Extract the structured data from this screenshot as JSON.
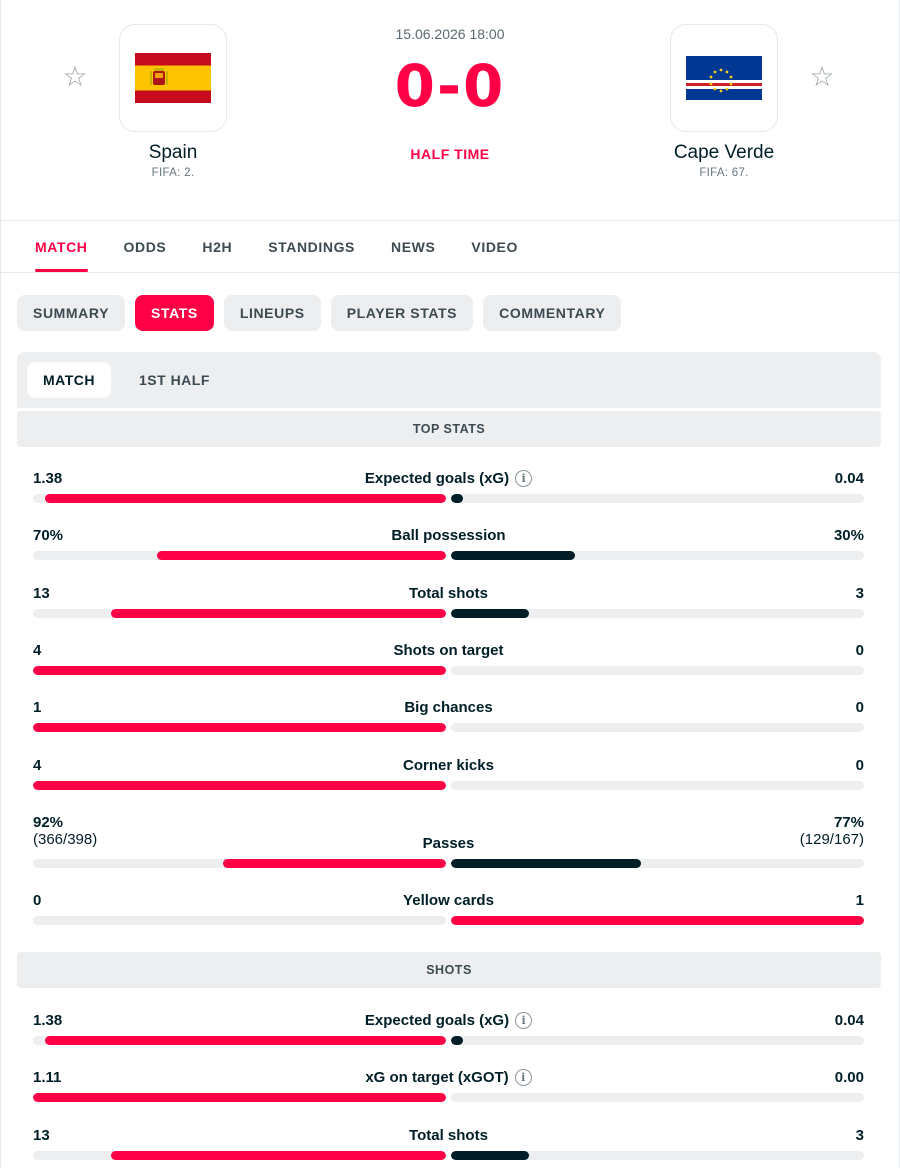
{
  "match": {
    "date": "15.06.2026 18:00",
    "score": "0-0",
    "status": "HALF TIME",
    "home": {
      "name": "Spain",
      "rank": "FIFA: 2."
    },
    "away": {
      "name": "Cape Verde",
      "rank": "FIFA: 67."
    }
  },
  "icons": {
    "favorite": "star-outline-icon",
    "info": "info-circle-icon"
  },
  "colors": {
    "accent": "#ff0046",
    "away_bar": "#001e28",
    "track": "#eceef0"
  },
  "main_tabs": [
    "MATCH",
    "ODDS",
    "H2H",
    "STANDINGS",
    "NEWS",
    "VIDEO"
  ],
  "sub_tabs": [
    "SUMMARY",
    "STATS",
    "LINEUPS",
    "PLAYER STATS",
    "COMMENTARY"
  ],
  "period_tabs": [
    "MATCH",
    "1ST HALF"
  ],
  "sections": [
    {
      "title": "TOP STATS",
      "stats": [
        {
          "home": "1.38",
          "name": "Expected goals (xG)",
          "away": "0.04",
          "info": true,
          "home_frac": 0.97,
          "away_frac": 0.028,
          "home_leads": true
        },
        {
          "home": "70%",
          "name": "Ball possession",
          "away": "30%",
          "info": false,
          "home_frac": 0.7,
          "away_frac": 0.3,
          "home_leads": true
        },
        {
          "home": "13",
          "name": "Total shots",
          "away": "3",
          "info": false,
          "home_frac": 0.81,
          "away_frac": 0.19,
          "home_leads": true
        },
        {
          "home": "4",
          "name": "Shots on target",
          "away": "0",
          "info": false,
          "home_frac": 1.0,
          "away_frac": 0.0,
          "home_leads": true
        },
        {
          "home": "1",
          "name": "Big chances",
          "away": "0",
          "info": false,
          "home_frac": 1.0,
          "away_frac": 0.0,
          "home_leads": true
        },
        {
          "home": "4",
          "name": "Corner kicks",
          "away": "0",
          "info": false,
          "home_frac": 1.0,
          "away_frac": 0.0,
          "home_leads": true
        },
        {
          "home": "92%",
          "home_sub": "(366/398)",
          "name": "Passes",
          "away": "77%",
          "away_sub": "(129/167)",
          "info": false,
          "home_frac": 0.54,
          "away_frac": 0.46,
          "home_leads": true
        },
        {
          "home": "0",
          "name": "Yellow cards",
          "away": "1",
          "info": false,
          "home_frac": 0.0,
          "away_frac": 1.0,
          "home_leads": false
        }
      ]
    },
    {
      "title": "SHOTS",
      "stats": [
        {
          "home": "1.38",
          "name": "Expected goals (xG)",
          "away": "0.04",
          "info": true,
          "home_frac": 0.97,
          "away_frac": 0.028,
          "home_leads": true
        },
        {
          "home": "1.11",
          "name": "xG on target (xGOT)",
          "away": "0.00",
          "info": true,
          "home_frac": 1.0,
          "away_frac": 0.0,
          "home_leads": true
        },
        {
          "home": "13",
          "name": "Total shots",
          "away": "3",
          "info": false,
          "home_frac": 0.81,
          "away_frac": 0.19,
          "home_leads": true
        }
      ]
    }
  ]
}
